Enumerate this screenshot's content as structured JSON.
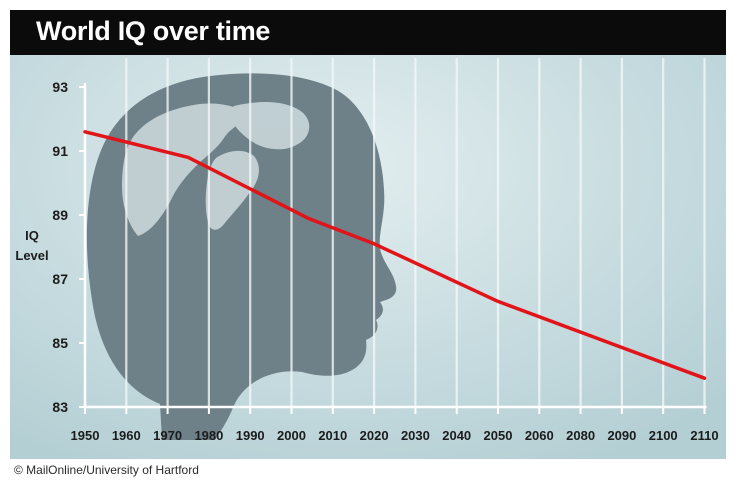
{
  "chart_data": {
    "type": "line",
    "title": "World IQ over time",
    "xlabel": "",
    "ylabel": "IQ Level",
    "ylabel_lines": [
      "IQ",
      "Level"
    ],
    "ylim": [
      83,
      93
    ],
    "yticks": [
      93,
      91,
      89,
      87,
      85,
      83
    ],
    "x_ticks": [
      "1950",
      "1960",
      "1970",
      "1980",
      "1990",
      "2000",
      "2010",
      "2020",
      "2030",
      "2040",
      "2050",
      "2060",
      "2080",
      "2090",
      "2100",
      "2110"
    ],
    "series": [
      {
        "color": "#e01419",
        "points": [
          {
            "tick_index": 0,
            "y": 91.6
          },
          {
            "tick_index": 2.5,
            "y": 90.8
          },
          {
            "tick_index": 5.4,
            "y": 88.9
          },
          {
            "tick_index": 7,
            "y": 88.1
          },
          {
            "tick_index": 10,
            "y": 86.3
          },
          {
            "tick_index": 15,
            "y": 83.9
          }
        ]
      }
    ],
    "grid": "vertical",
    "background_image": "head-silhouette-with-globe"
  },
  "credit": "© MailOnline/University of Hartford",
  "colors": {
    "background": "#c3d9dd",
    "title_bar": "#0b0b0b",
    "line": "#e01419",
    "grid": "#f4f8f9",
    "head": "#6e8189"
  }
}
